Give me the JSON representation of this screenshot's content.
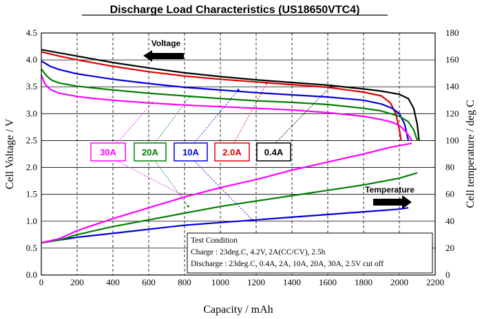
{
  "chart_data": {
    "type": "line",
    "title": "Discharge Load Characteristics (US18650VTC4)",
    "xlabel": "Capacity / mAh",
    "ylabel": "Cell Voltage / V",
    "y2label": "Cell temperature / deg C",
    "xlim": [
      0,
      2200
    ],
    "ylim": [
      0.0,
      4.5
    ],
    "y2lim": [
      0,
      180
    ],
    "x_ticks": [
      "0",
      "200",
      "400",
      "600",
      "800",
      "1000",
      "1200",
      "1400",
      "1600",
      "1800",
      "2000",
      "2200"
    ],
    "y_ticks": [
      "0.0",
      "0.5",
      "1.0",
      "1.5",
      "2.0",
      "2.5",
      "3.0",
      "3.5",
      "4.0",
      "4.5"
    ],
    "y2_ticks": [
      "0",
      "20",
      "40",
      "60",
      "80",
      "100",
      "120",
      "140",
      "160",
      "180"
    ],
    "grid": true,
    "colors": {
      "c30A": "#ff00ff",
      "c20A": "#008000",
      "c10A": "#0000dd",
      "c2A": "#e00000",
      "c04A": "#000000"
    },
    "voltage_series": [
      {
        "name": "0.4A",
        "color": "#000000",
        "x": [
          0,
          100,
          200,
          400,
          600,
          800,
          1000,
          1200,
          1400,
          1600,
          1800,
          1900,
          2000,
          2050,
          2080,
          2100,
          2110
        ],
        "y": [
          4.19,
          4.13,
          4.07,
          3.95,
          3.85,
          3.76,
          3.69,
          3.63,
          3.58,
          3.53,
          3.46,
          3.42,
          3.36,
          3.28,
          3.1,
          2.8,
          2.5
        ]
      },
      {
        "name": "2.0A",
        "color": "#e00000",
        "x": [
          0,
          100,
          200,
          400,
          600,
          800,
          1000,
          1200,
          1400,
          1600,
          1800,
          1900,
          1950,
          1980,
          2000,
          2010
        ],
        "y": [
          4.15,
          4.07,
          4.0,
          3.88,
          3.78,
          3.7,
          3.64,
          3.59,
          3.54,
          3.49,
          3.4,
          3.33,
          3.2,
          3.0,
          2.7,
          2.5
        ]
      },
      {
        "name": "10A",
        "color": "#0000dd",
        "x": [
          0,
          50,
          100,
          200,
          400,
          600,
          800,
          1000,
          1200,
          1400,
          1600,
          1800,
          1900,
          1960,
          2000,
          2030,
          2050
        ],
        "y": [
          3.98,
          3.88,
          3.82,
          3.74,
          3.64,
          3.56,
          3.49,
          3.44,
          3.39,
          3.35,
          3.31,
          3.25,
          3.18,
          3.1,
          3.0,
          2.8,
          2.5
        ]
      },
      {
        "name": "20A",
        "color": "#008000",
        "x": [
          0,
          30,
          60,
          100,
          200,
          400,
          600,
          800,
          1000,
          1200,
          1400,
          1600,
          1800,
          1900,
          2000,
          2050,
          2080,
          2100
        ],
        "y": [
          3.83,
          3.7,
          3.62,
          3.57,
          3.51,
          3.44,
          3.38,
          3.33,
          3.28,
          3.24,
          3.21,
          3.17,
          3.1,
          3.05,
          2.95,
          2.85,
          2.7,
          2.5
        ]
      },
      {
        "name": "30A",
        "color": "#ff00ff",
        "x": [
          0,
          20,
          50,
          100,
          200,
          300,
          400,
          600,
          800,
          1000,
          1200,
          1400,
          1600,
          1800,
          1900,
          1960,
          2000,
          2040,
          2070
        ],
        "y": [
          3.72,
          3.55,
          3.45,
          3.38,
          3.32,
          3.28,
          3.25,
          3.2,
          3.16,
          3.13,
          3.1,
          3.07,
          3.02,
          2.95,
          2.89,
          2.84,
          2.78,
          2.65,
          2.5
        ]
      }
    ],
    "temperature_series": [
      {
        "name": "10A",
        "color": "#0000dd",
        "x": [
          0,
          100,
          200,
          400,
          600,
          800,
          1000,
          1200,
          1400,
          1600,
          1800,
          1900,
          2000,
          2050
        ],
        "y": [
          24,
          26,
          28,
          31,
          34,
          37,
          39,
          41,
          43,
          45,
          47,
          48,
          49,
          50
        ]
      },
      {
        "name": "20A",
        "color": "#008000",
        "x": [
          0,
          100,
          200,
          400,
          600,
          800,
          1000,
          1200,
          1400,
          1600,
          1800,
          2000,
          2100
        ],
        "y": [
          24,
          26,
          30,
          36,
          41,
          46,
          51,
          55,
          59,
          63,
          67,
          72,
          76
        ]
      },
      {
        "name": "30A",
        "color": "#ff00ff",
        "x": [
          0,
          100,
          200,
          400,
          600,
          800,
          1000,
          1200,
          1400,
          1600,
          1800,
          1950,
          2070
        ],
        "y": [
          24,
          27,
          33,
          42,
          50,
          58,
          65,
          71,
          78,
          84,
          90,
          95,
          98
        ]
      }
    ],
    "legend": [
      {
        "label": "30A",
        "color": "#ff00ff"
      },
      {
        "label": "20A",
        "color": "#008000"
      },
      {
        "label": "10A",
        "color": "#0000dd"
      },
      {
        "label": "2.0A",
        "color": "#e00000"
      },
      {
        "label": "0.4A",
        "color": "#000000"
      }
    ],
    "annotations": {
      "voltage": "Voltage",
      "temperature": "Temperature"
    },
    "test_condition": {
      "title": "Test Condition",
      "line1": "Charge : 23deg.C, 4.2V, 2A(CC/CV), 2.5h",
      "line2": "Discharge : 23deg.C, 0.4A, 2A, 10A, 20A, 30A, 2.5V cut off"
    }
  }
}
